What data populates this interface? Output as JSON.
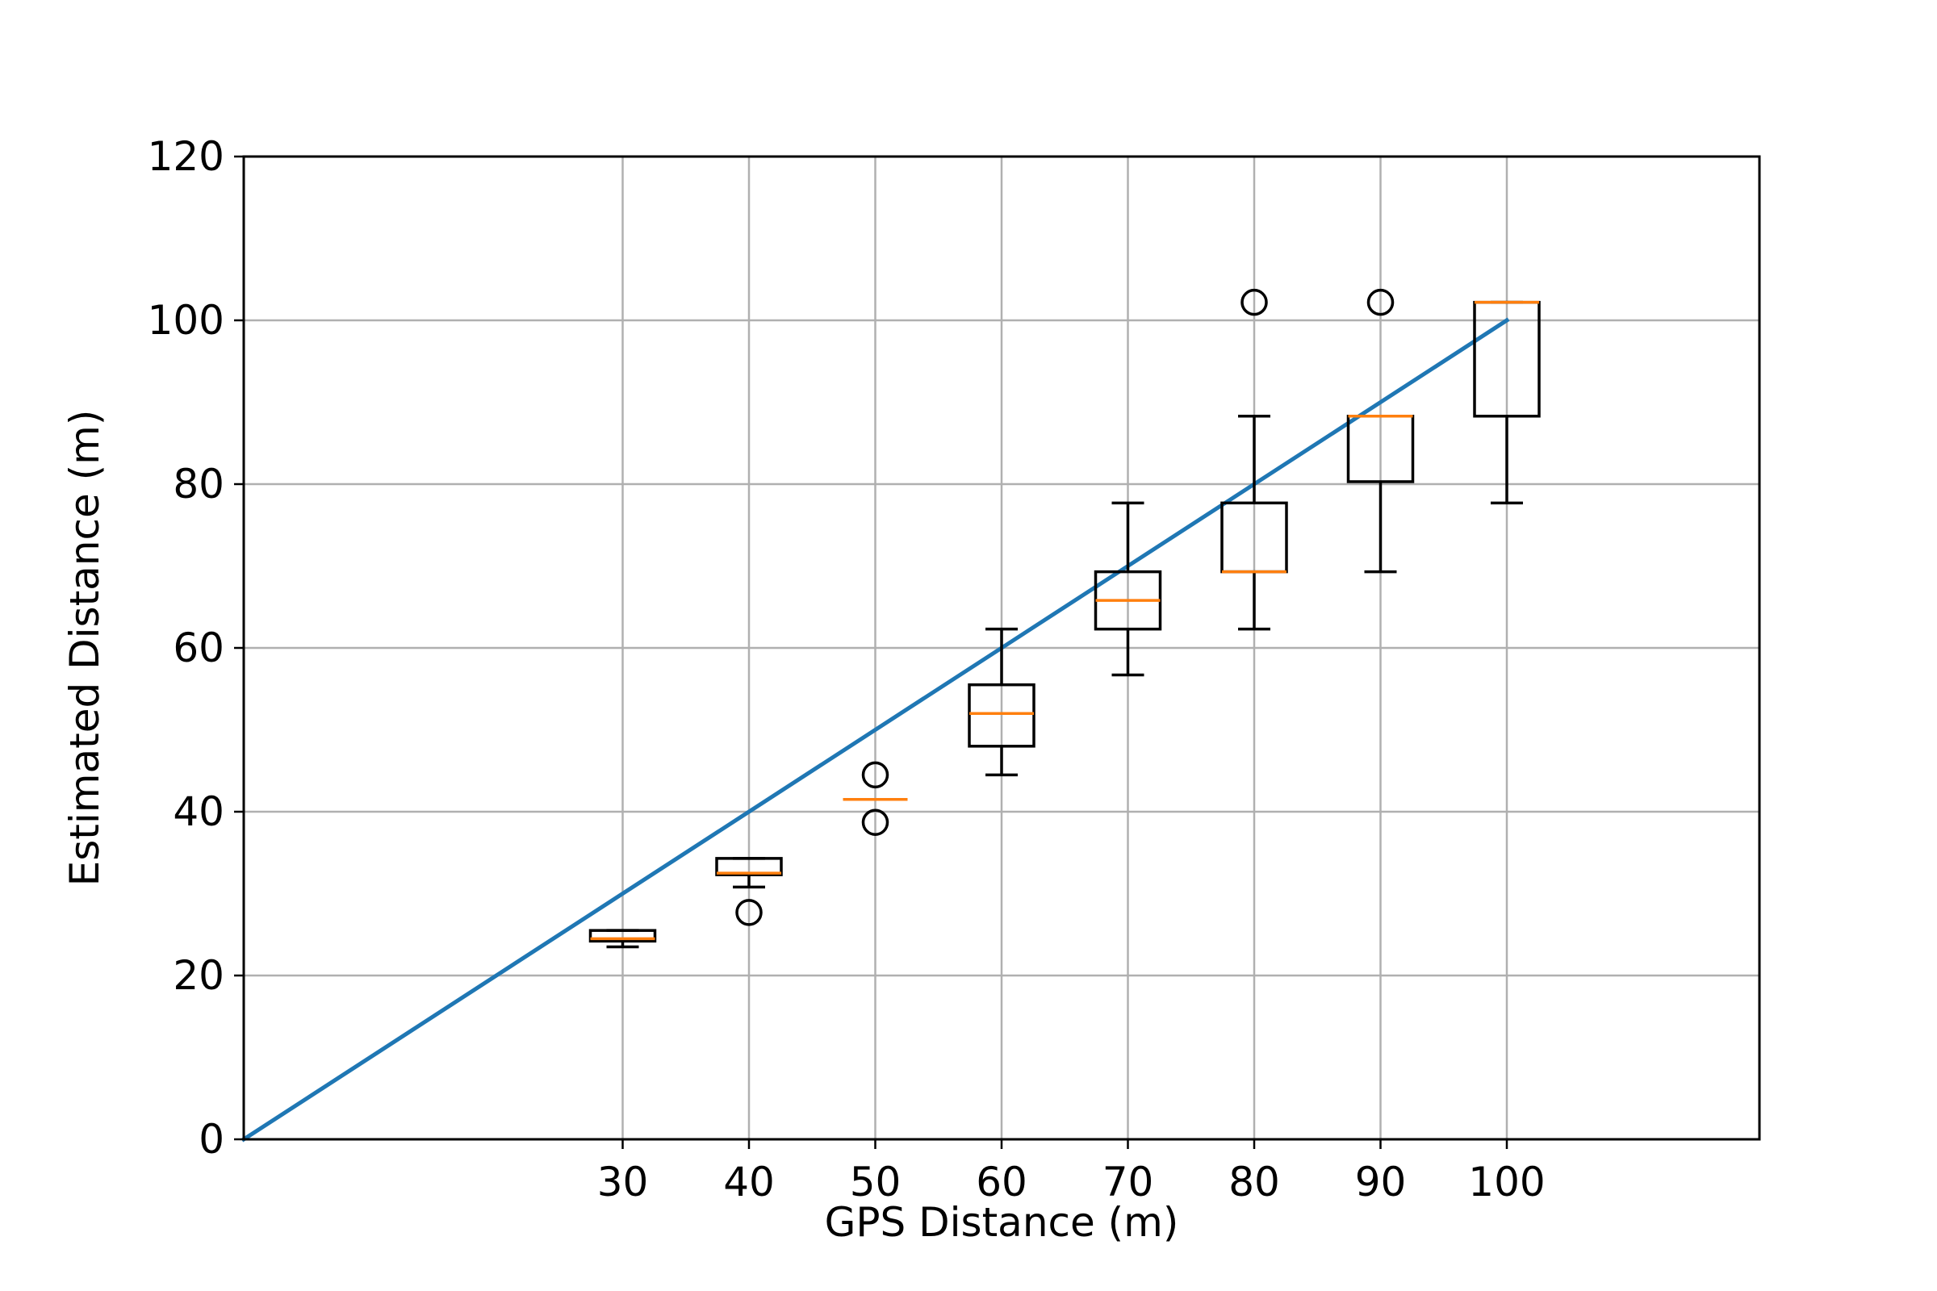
{
  "chart_data": {
    "type": "box",
    "xlabel": "GPS Distance (m)",
    "ylabel": "Estimated Distance (m)",
    "xlim": [
      0,
      120
    ],
    "ylim": [
      0,
      120
    ],
    "xticks": [
      30,
      40,
      50,
      60,
      70,
      80,
      90,
      100
    ],
    "yticks": [
      0,
      20,
      40,
      60,
      80,
      100,
      120
    ],
    "grid": true,
    "colors": {
      "box": "#000000",
      "median": "#ff7f0e",
      "reference_line": "#1f77b4",
      "grid": "#b0b0b0"
    },
    "reference_line": {
      "x": [
        0,
        100
      ],
      "y": [
        0,
        100
      ]
    },
    "boxes": [
      {
        "x": 30,
        "whisker_low": 23.5,
        "q1": 24.2,
        "median": 24.5,
        "q3": 25.5,
        "whisker_high": 25.5,
        "outliers": []
      },
      {
        "x": 40,
        "whisker_low": 30.8,
        "q1": 32.3,
        "median": 32.5,
        "q3": 34.3,
        "whisker_high": 34.3,
        "outliers": [
          27.7
        ]
      },
      {
        "x": 50,
        "whisker_low": 41.5,
        "q1": 41.5,
        "median": 41.5,
        "q3": 41.5,
        "whisker_high": 41.5,
        "outliers": [
          44.5,
          38.7
        ]
      },
      {
        "x": 60,
        "whisker_low": 44.5,
        "q1": 48.0,
        "median": 52.0,
        "q3": 55.5,
        "whisker_high": 62.3,
        "outliers": []
      },
      {
        "x": 70,
        "whisker_low": 56.7,
        "q1": 62.3,
        "median": 65.8,
        "q3": 69.3,
        "whisker_high": 77.7,
        "outliers": []
      },
      {
        "x": 80,
        "whisker_low": 62.3,
        "q1": 69.3,
        "median": 69.3,
        "q3": 77.7,
        "whisker_high": 88.3,
        "outliers": [
          102.2
        ]
      },
      {
        "x": 90,
        "whisker_low": 69.3,
        "q1": 80.3,
        "median": 88.3,
        "q3": 88.3,
        "whisker_high": 88.3,
        "outliers": [
          102.2
        ]
      },
      {
        "x": 100,
        "whisker_low": 77.7,
        "q1": 88.3,
        "median": 102.2,
        "q3": 102.2,
        "whisker_high": 102.2,
        "outliers": []
      }
    ]
  }
}
